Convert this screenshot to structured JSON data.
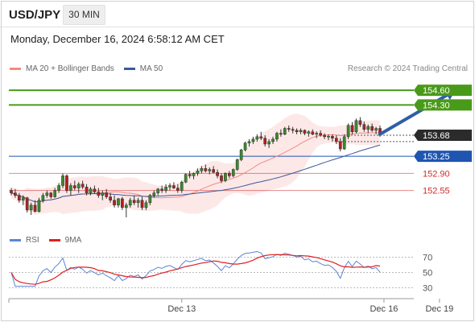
{
  "header": {
    "symbol": "USD/JPY",
    "timeframe": "30 MIN",
    "datetime": "Monday, December 16, 2024 6:58:12 AM CET"
  },
  "legend": {
    "ma20_label": "MA 20 + Bollinger Bands",
    "ma50_label": "MA 50",
    "credit": "Research © 2024 Trading Central"
  },
  "colors": {
    "ma20": "#f28b82",
    "ma50": "#3a5a9a",
    "resistance": "#4a9a1a",
    "support_blue": "#1f55b0",
    "support_red": "#cc2b2b",
    "price": "#333333",
    "arrow": "#2e5fa5",
    "rsi": "#5b84d6",
    "rsi_ma": "#e02020",
    "band_fill": "#fde2e2"
  },
  "levels": [
    {
      "label": "154.60",
      "value": 154.6,
      "kind": "resistance"
    },
    {
      "label": "154.30",
      "value": 154.3,
      "kind": "resistance"
    },
    {
      "label": "153.68",
      "value": 153.68,
      "kind": "price"
    },
    {
      "label": "153.25",
      "value": 153.25,
      "kind": "support_blue"
    },
    {
      "label": "152.90",
      "value": 152.9,
      "kind": "support_red"
    },
    {
      "label": "152.55",
      "value": 152.55,
      "kind": "support_red"
    }
  ],
  "rsi_legend": {
    "rsi_label": "RSI",
    "ma_label": "9MA"
  },
  "rsi_ticks": [
    "70",
    "50",
    "30"
  ],
  "x_labels": [
    "Dec 13",
    "Dec 16",
    "Dec 19"
  ],
  "chart_data": {
    "type": "candlestick",
    "ylim": [
      152.0,
      154.8
    ],
    "x_ticks": [
      {
        "label": "Dec 13",
        "index": 43
      },
      {
        "label": "Dec 16",
        "index": 94
      },
      {
        "label": "Dec 19",
        "index": 108
      }
    ],
    "candles": [
      [
        152.55,
        152.6,
        152.45,
        152.5
      ],
      [
        152.5,
        152.58,
        152.4,
        152.45
      ],
      [
        152.45,
        152.5,
        152.3,
        152.35
      ],
      [
        152.35,
        152.45,
        152.25,
        152.4
      ],
      [
        152.4,
        152.42,
        152.1,
        152.15
      ],
      [
        152.15,
        152.3,
        152.05,
        152.25
      ],
      [
        152.25,
        152.35,
        152.1,
        152.12
      ],
      [
        152.12,
        152.4,
        152.1,
        152.35
      ],
      [
        152.35,
        152.5,
        152.3,
        152.45
      ],
      [
        152.45,
        152.55,
        152.4,
        152.5
      ],
      [
        152.5,
        152.52,
        152.38,
        152.42
      ],
      [
        152.42,
        152.6,
        152.4,
        152.55
      ],
      [
        152.55,
        152.7,
        152.5,
        152.65
      ],
      [
        152.65,
        152.9,
        152.6,
        152.85
      ],
      [
        152.85,
        152.88,
        152.5,
        152.55
      ],
      [
        152.55,
        152.7,
        152.45,
        152.65
      ],
      [
        152.65,
        152.75,
        152.55,
        152.6
      ],
      [
        152.6,
        152.72,
        152.5,
        152.68
      ],
      [
        152.68,
        152.75,
        152.58,
        152.62
      ],
      [
        152.62,
        152.68,
        152.45,
        152.5
      ],
      [
        152.5,
        152.62,
        152.45,
        152.58
      ],
      [
        152.58,
        152.65,
        152.48,
        152.52
      ],
      [
        152.52,
        152.6,
        152.4,
        152.45
      ],
      [
        152.45,
        152.55,
        152.35,
        152.5
      ],
      [
        152.5,
        152.58,
        152.38,
        152.42
      ],
      [
        152.42,
        152.5,
        152.3,
        152.35
      ],
      [
        152.35,
        152.45,
        152.2,
        152.25
      ],
      [
        152.25,
        152.4,
        152.2,
        152.38
      ],
      [
        152.38,
        152.42,
        152.15,
        152.2
      ],
      [
        152.2,
        152.3,
        152.0,
        152.25
      ],
      [
        152.25,
        152.4,
        152.2,
        152.35
      ],
      [
        152.35,
        152.45,
        152.25,
        152.3
      ],
      [
        152.3,
        152.4,
        152.2,
        152.35
      ],
      [
        152.35,
        152.42,
        152.15,
        152.2
      ],
      [
        152.2,
        152.35,
        152.15,
        152.3
      ],
      [
        152.3,
        152.48,
        152.25,
        152.45
      ],
      [
        152.45,
        152.55,
        152.4,
        152.5
      ],
      [
        152.5,
        152.6,
        152.45,
        152.58
      ],
      [
        152.58,
        152.65,
        152.5,
        152.55
      ],
      [
        152.55,
        152.68,
        152.5,
        152.62
      ],
      [
        152.62,
        152.7,
        152.55,
        152.65
      ],
      [
        152.65,
        152.72,
        152.58,
        152.6
      ],
      [
        152.6,
        152.68,
        152.5,
        152.55
      ],
      [
        152.55,
        152.75,
        152.5,
        152.72
      ],
      [
        152.72,
        152.9,
        152.7,
        152.88
      ],
      [
        152.88,
        152.95,
        152.8,
        152.85
      ],
      [
        152.85,
        152.92,
        152.78,
        152.9
      ],
      [
        152.9,
        153.0,
        152.85,
        152.95
      ],
      [
        152.95,
        153.05,
        152.9,
        153.0
      ],
      [
        153.0,
        153.08,
        152.92,
        152.95
      ],
      [
        152.95,
        153.02,
        152.88,
        152.98
      ],
      [
        152.98,
        153.05,
        152.9,
        152.92
      ],
      [
        152.92,
        152.98,
        152.8,
        152.85
      ],
      [
        152.85,
        152.9,
        152.7,
        152.75
      ],
      [
        152.75,
        152.92,
        152.72,
        152.9
      ],
      [
        152.9,
        152.95,
        152.8,
        152.85
      ],
      [
        152.85,
        153.0,
        152.82,
        152.98
      ],
      [
        152.98,
        153.2,
        152.95,
        153.18
      ],
      [
        153.18,
        153.4,
        153.15,
        153.38
      ],
      [
        153.38,
        153.55,
        153.35,
        153.52
      ],
      [
        153.52,
        153.6,
        153.45,
        153.55
      ],
      [
        153.55,
        153.65,
        153.5,
        153.6
      ],
      [
        153.6,
        153.7,
        153.55,
        153.65
      ],
      [
        153.65,
        153.75,
        153.58,
        153.62
      ],
      [
        153.62,
        153.68,
        153.45,
        153.5
      ],
      [
        153.5,
        153.6,
        153.42,
        153.55
      ],
      [
        153.55,
        153.65,
        153.5,
        153.6
      ],
      [
        153.6,
        153.75,
        153.55,
        153.72
      ],
      [
        153.72,
        153.8,
        153.65,
        153.7
      ],
      [
        153.7,
        153.85,
        153.68,
        153.82
      ],
      [
        153.82,
        153.88,
        153.75,
        153.8
      ],
      [
        153.8,
        153.85,
        153.72,
        153.78
      ],
      [
        153.78,
        153.82,
        153.7,
        153.75
      ],
      [
        153.75,
        153.82,
        153.7,
        153.78
      ],
      [
        153.78,
        153.8,
        153.68,
        153.72
      ],
      [
        153.72,
        153.78,
        153.65,
        153.75
      ],
      [
        153.75,
        153.8,
        153.68,
        153.7
      ],
      [
        153.7,
        153.76,
        153.62,
        153.72
      ],
      [
        153.72,
        153.78,
        153.65,
        153.68
      ],
      [
        153.68,
        153.72,
        153.6,
        153.65
      ],
      [
        153.65,
        153.7,
        153.58,
        153.66
      ],
      [
        153.66,
        153.7,
        153.55,
        153.62
      ],
      [
        153.62,
        153.68,
        153.5,
        153.55
      ],
      [
        153.55,
        153.62,
        153.35,
        153.4
      ],
      [
        153.4,
        153.7,
        153.38,
        153.65
      ],
      [
        153.65,
        153.92,
        153.6,
        153.88
      ],
      [
        153.88,
        153.95,
        153.7,
        153.75
      ],
      [
        153.75,
        154.02,
        153.72,
        153.98
      ],
      [
        153.98,
        154.05,
        153.85,
        153.9
      ],
      [
        153.9,
        153.96,
        153.75,
        153.8
      ],
      [
        153.8,
        153.9,
        153.72,
        153.86
      ],
      [
        153.86,
        153.92,
        153.75,
        153.78
      ],
      [
        153.78,
        153.85,
        153.7,
        153.82
      ],
      [
        153.82,
        153.88,
        153.65,
        153.68
      ]
    ],
    "arrow": {
      "from": [
        93,
        153.7
      ],
      "to": [
        112,
        154.6
      ]
    },
    "rsi": {
      "ylim": [
        20,
        80
      ]
    }
  }
}
